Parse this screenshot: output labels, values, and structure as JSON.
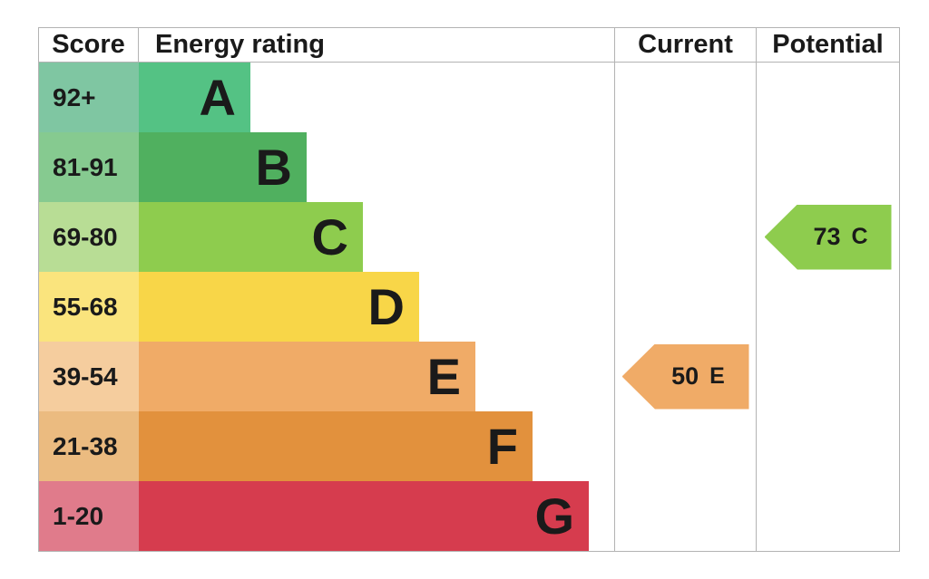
{
  "header": {
    "score": "Score",
    "rating": "Energy rating",
    "current": "Current",
    "potential": "Potential"
  },
  "bands": [
    {
      "score": "92+",
      "letter": "A",
      "bar_color": "#54c284",
      "score_color": "#7fc6a2"
    },
    {
      "score": "81-91",
      "letter": "B",
      "bar_color": "#50b05f",
      "score_color": "#86ca90"
    },
    {
      "score": "69-80",
      "letter": "C",
      "bar_color": "#8ecc4e",
      "score_color": "#b8dd95"
    },
    {
      "score": "55-68",
      "letter": "D",
      "bar_color": "#f8d648",
      "score_color": "#fae47d"
    },
    {
      "score": "39-54",
      "letter": "E",
      "bar_color": "#f0ab67",
      "score_color": "#f5cd9e"
    },
    {
      "score": "21-38",
      "letter": "F",
      "bar_color": "#e2913d",
      "score_color": "#ebbb80"
    },
    {
      "score": "1-20",
      "letter": "G",
      "bar_color": "#d63c4e",
      "score_color": "#e07b8b"
    }
  ],
  "current": {
    "value": "50",
    "letter": "E",
    "color": "#f0ab67"
  },
  "potential": {
    "value": "73",
    "letter": "C",
    "color": "#8ecc4e"
  },
  "chart_data": {
    "type": "bar",
    "title": "",
    "columns": [
      "Score",
      "Energy rating",
      "Current",
      "Potential"
    ],
    "categories": [
      "A",
      "B",
      "C",
      "D",
      "E",
      "F",
      "G"
    ],
    "score_ranges": [
      "92+",
      "81-91",
      "69-80",
      "55-68",
      "39-54",
      "21-38",
      "1-20"
    ],
    "band_colors": [
      "#54c284",
      "#50b05f",
      "#8ecc4e",
      "#f8d648",
      "#f0ab67",
      "#e2913d",
      "#d63c4e"
    ],
    "current": {
      "score": 50,
      "rating": "E"
    },
    "potential": {
      "score": 73,
      "rating": "C"
    }
  }
}
